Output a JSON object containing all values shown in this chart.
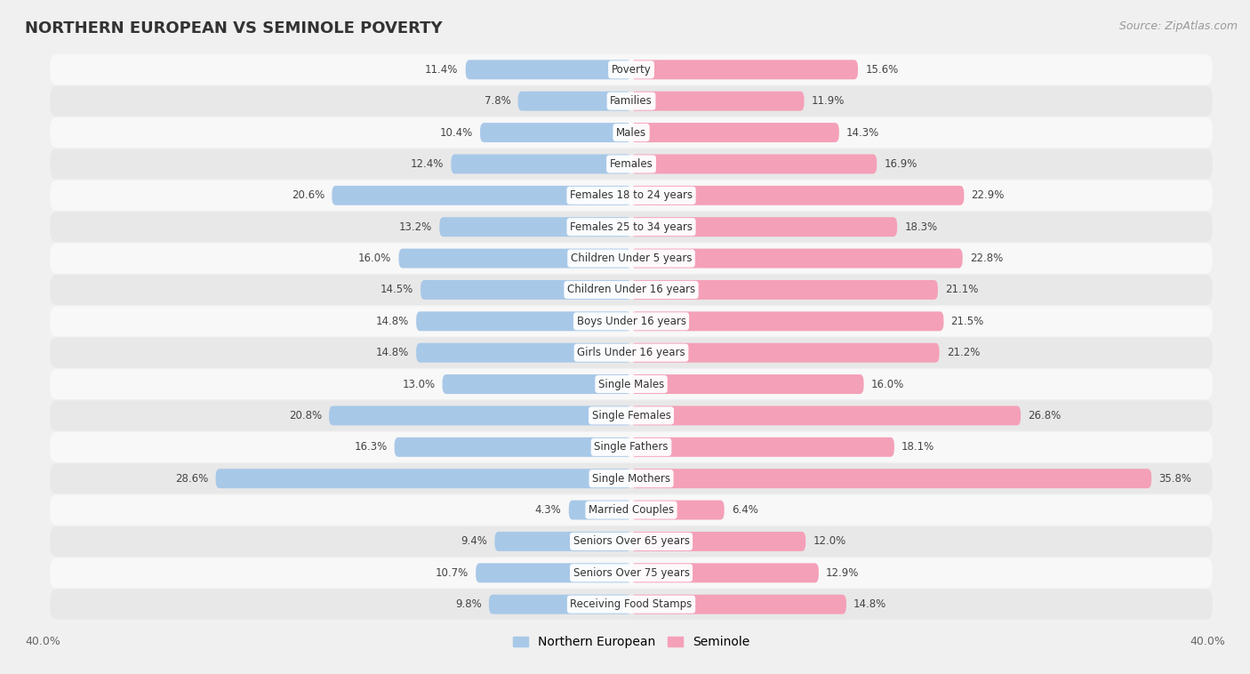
{
  "title": "NORTHERN EUROPEAN VS SEMINOLE POVERTY",
  "source": "Source: ZipAtlas.com",
  "categories": [
    "Poverty",
    "Families",
    "Males",
    "Females",
    "Females 18 to 24 years",
    "Females 25 to 34 years",
    "Children Under 5 years",
    "Children Under 16 years",
    "Boys Under 16 years",
    "Girls Under 16 years",
    "Single Males",
    "Single Females",
    "Single Fathers",
    "Single Mothers",
    "Married Couples",
    "Seniors Over 65 years",
    "Seniors Over 75 years",
    "Receiving Food Stamps"
  ],
  "northern_european": [
    11.4,
    7.8,
    10.4,
    12.4,
    20.6,
    13.2,
    16.0,
    14.5,
    14.8,
    14.8,
    13.0,
    20.8,
    16.3,
    28.6,
    4.3,
    9.4,
    10.7,
    9.8
  ],
  "seminole": [
    15.6,
    11.9,
    14.3,
    16.9,
    22.9,
    18.3,
    22.8,
    21.1,
    21.5,
    21.2,
    16.0,
    26.8,
    18.1,
    35.8,
    6.4,
    12.0,
    12.9,
    14.8
  ],
  "ne_color": "#a8c8e8",
  "sem_color": "#f4a0b8",
  "background_color": "#f0f0f0",
  "row_color_light": "#f8f8f8",
  "row_color_dark": "#e8e8e8",
  "xlim": 40.0,
  "bar_height": 0.62,
  "legend_ne": "Northern European",
  "legend_sem": "Seminole",
  "label_fontsize": 8.5,
  "title_fontsize": 13,
  "source_fontsize": 9
}
